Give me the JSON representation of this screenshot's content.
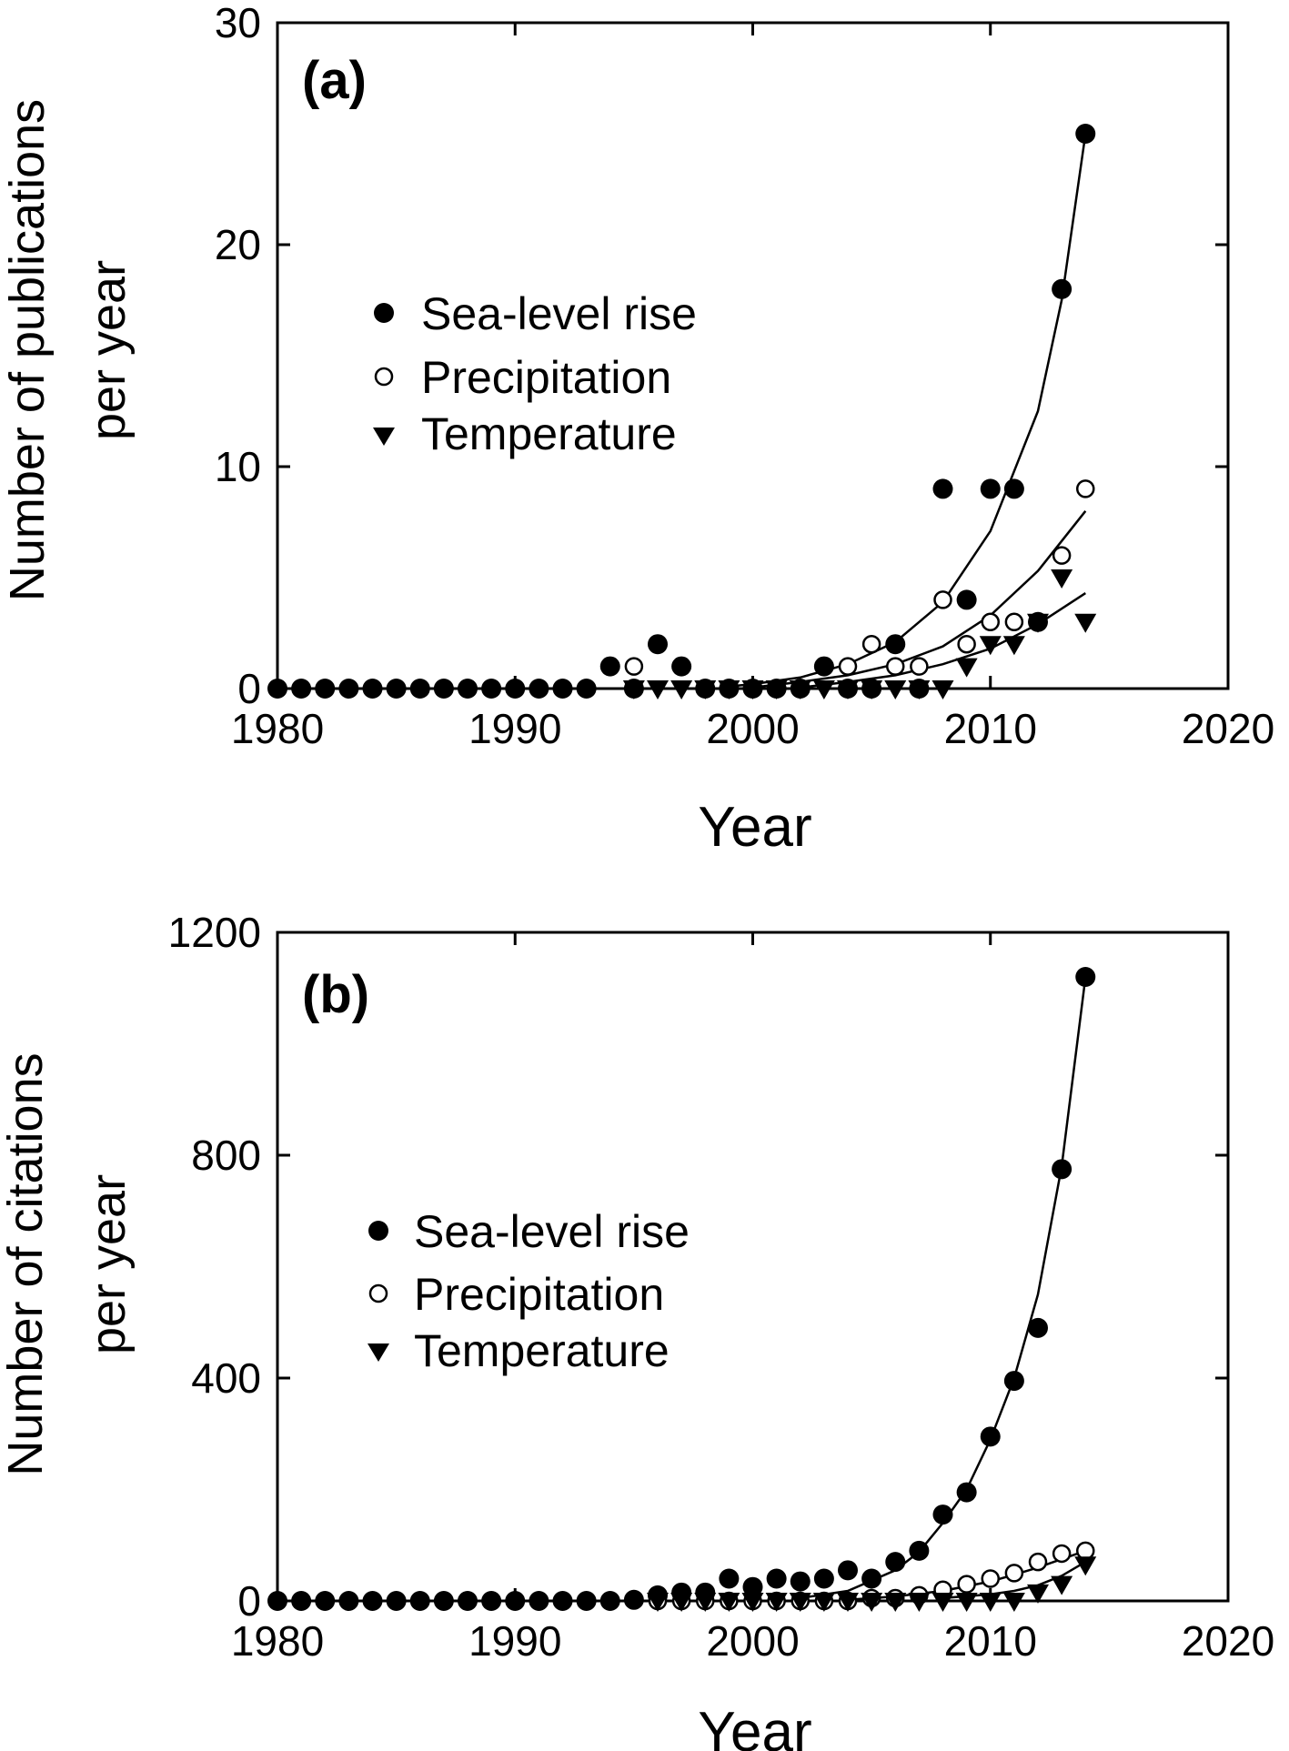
{
  "chart_data": [
    {
      "type": "scatter",
      "panel_label": "(a)",
      "xlabel": "Year",
      "ylabel_lines": [
        "Number of publications",
        "per year"
      ],
      "xlim": [
        1980,
        2020
      ],
      "ylim": [
        0,
        30
      ],
      "xticks": [
        1980,
        1990,
        2000,
        2010,
        2020
      ],
      "yticks": [
        0,
        10,
        20,
        30
      ],
      "grid": false,
      "legend_placement": "upper-left",
      "series": [
        {
          "name": "Sea-level rise",
          "marker": "filled-circle",
          "x": [
            1980,
            1981,
            1982,
            1983,
            1984,
            1985,
            1986,
            1987,
            1988,
            1989,
            1990,
            1991,
            1992,
            1993,
            1994,
            1995,
            1996,
            1997,
            1998,
            1999,
            2000,
            2001,
            2002,
            2003,
            2004,
            2005,
            2006,
            2007,
            2008,
            2009,
            2010,
            2011,
            2012,
            2013,
            2014
          ],
          "y": [
            0,
            0,
            0,
            0,
            0,
            0,
            0,
            0,
            0,
            0,
            0,
            0,
            0,
            0,
            1,
            0,
            2,
            1,
            0,
            0,
            0,
            0,
            0,
            1,
            0,
            0,
            2,
            0,
            9,
            4,
            9,
            9,
            3,
            18,
            25
          ],
          "fit": {
            "type": "exponential",
            "x": [
              1999,
              2000,
              2002,
              2004,
              2006,
              2008,
              2010,
              2012,
              2013,
              2014
            ],
            "y": [
              0.1,
              0.2,
              0.5,
              1.1,
              2.1,
              3.9,
              7.1,
              12.5,
              17.5,
              25
            ]
          }
        },
        {
          "name": "Precipitation",
          "marker": "open-circle",
          "x": [
            1995,
            2004,
            2005,
            2006,
            2007,
            2008,
            2009,
            2010,
            2011,
            2013,
            2014
          ],
          "y": [
            1,
            1,
            2,
            1,
            1,
            4,
            2,
            3,
            3,
            6,
            9
          ],
          "fit": {
            "type": "exponential",
            "x": [
              2000,
              2002,
              2004,
              2006,
              2008,
              2010,
              2012,
              2014
            ],
            "y": [
              0.05,
              0.3,
              0.6,
              1.1,
              1.9,
              3.3,
              5.3,
              8
            ]
          }
        },
        {
          "name": "Temperature",
          "marker": "filled-triangle-down",
          "x": [
            1995,
            1996,
            1997,
            1998,
            1999,
            2000,
            2001,
            2002,
            2003,
            2004,
            2005,
            2006,
            2007,
            2008,
            2009,
            2010,
            2011,
            2012,
            2013,
            2014
          ],
          "y": [
            0,
            0,
            0,
            0,
            0,
            0,
            0,
            0,
            0,
            0,
            0,
            0,
            0,
            0,
            1,
            2,
            2,
            3,
            5,
            3
          ],
          "fit": {
            "type": "exponential",
            "x": [
              2002,
              2004,
              2006,
              2008,
              2010,
              2012,
              2014
            ],
            "y": [
              0.05,
              0.3,
              0.6,
              1.1,
              1.8,
              2.9,
              4.3
            ]
          }
        }
      ]
    },
    {
      "type": "scatter",
      "panel_label": "(b)",
      "xlabel": "Year",
      "ylabel_lines": [
        "Number of citations",
        "per year"
      ],
      "xlim": [
        1980,
        2020
      ],
      "ylim": [
        0,
        1200
      ],
      "xticks": [
        1980,
        1990,
        2000,
        2010,
        2020
      ],
      "yticks": [
        0,
        400,
        800,
        1200
      ],
      "grid": false,
      "legend_placement": "upper-left",
      "series": [
        {
          "name": "Sea-level rise",
          "marker": "filled-circle",
          "x": [
            1980,
            1981,
            1982,
            1983,
            1984,
            1985,
            1986,
            1987,
            1988,
            1989,
            1990,
            1991,
            1992,
            1993,
            1994,
            1995,
            1996,
            1997,
            1998,
            1999,
            2000,
            2001,
            2002,
            2003,
            2004,
            2005,
            2006,
            2007,
            2008,
            2009,
            2010,
            2011,
            2012,
            2013,
            2014
          ],
          "y": [
            0,
            0,
            0,
            0,
            0,
            0,
            0,
            0,
            0,
            0,
            0,
            0,
            0,
            0,
            0,
            2,
            10,
            15,
            15,
            40,
            25,
            40,
            35,
            40,
            55,
            40,
            70,
            90,
            155,
            195,
            295,
            395,
            490,
            775,
            1120
          ],
          "fit": {
            "type": "exponential",
            "x": [
              2002,
              2004,
              2006,
              2007,
              2008,
              2009,
              2010,
              2011,
              2012,
              2013,
              2014
            ],
            "y": [
              5,
              18,
              55,
              88,
              140,
              200,
              290,
              400,
              550,
              780,
              1120
            ]
          }
        },
        {
          "name": "Precipitation",
          "marker": "open-circle",
          "x": [
            1996,
            1997,
            1998,
            1999,
            2000,
            2001,
            2002,
            2003,
            2004,
            2005,
            2006,
            2007,
            2008,
            2009,
            2010,
            2011,
            2012,
            2013,
            2014
          ],
          "y": [
            0,
            0,
            0,
            0,
            0,
            0,
            0,
            0,
            0,
            5,
            5,
            10,
            20,
            30,
            40,
            50,
            70,
            85,
            90
          ],
          "fit": {
            "type": "exponential",
            "x": [
              2004,
              2006,
              2008,
              2010,
              2011,
              2012,
              2013,
              2014
            ],
            "y": [
              2,
              8,
              18,
              35,
              47,
              60,
              75,
              90
            ]
          }
        },
        {
          "name": "Temperature",
          "marker": "filled-triangle-down",
          "x": [
            1996,
            1997,
            1998,
            1999,
            2000,
            2001,
            2002,
            2003,
            2004,
            2005,
            2006,
            2007,
            2008,
            2009,
            2010,
            2011,
            2012,
            2013,
            2014
          ],
          "y": [
            0,
            0,
            0,
            0,
            0,
            0,
            0,
            0,
            0,
            0,
            0,
            0,
            0,
            0,
            0,
            0,
            15,
            30,
            65
          ],
          "fit": {
            "type": "exponential",
            "x": [
              2008,
              2010,
              2011,
              2012,
              2013,
              2014
            ],
            "y": [
              5,
              12,
              18,
              28,
              45,
              70
            ]
          }
        }
      ]
    }
  ]
}
